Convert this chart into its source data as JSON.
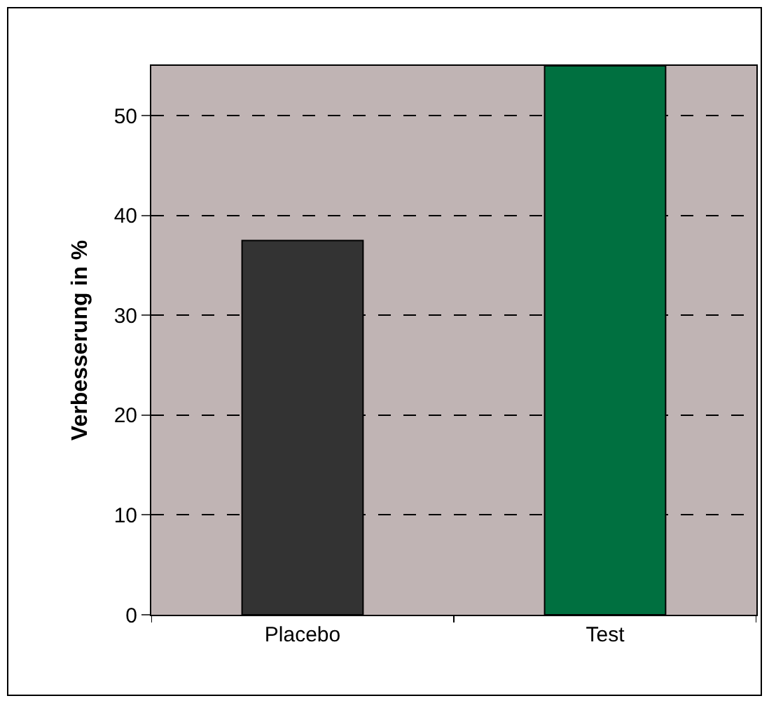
{
  "chart_data": {
    "type": "bar",
    "ylabel": "Verbesserung in %",
    "categories": [
      "Placebo",
      "Test"
    ],
    "values": [
      37.5,
      55
    ],
    "colors": [
      "#333333",
      "#007040"
    ],
    "ylim": [
      0,
      55
    ],
    "yticks": [
      0,
      10,
      20,
      30,
      40,
      50
    ],
    "grid": "y"
  }
}
